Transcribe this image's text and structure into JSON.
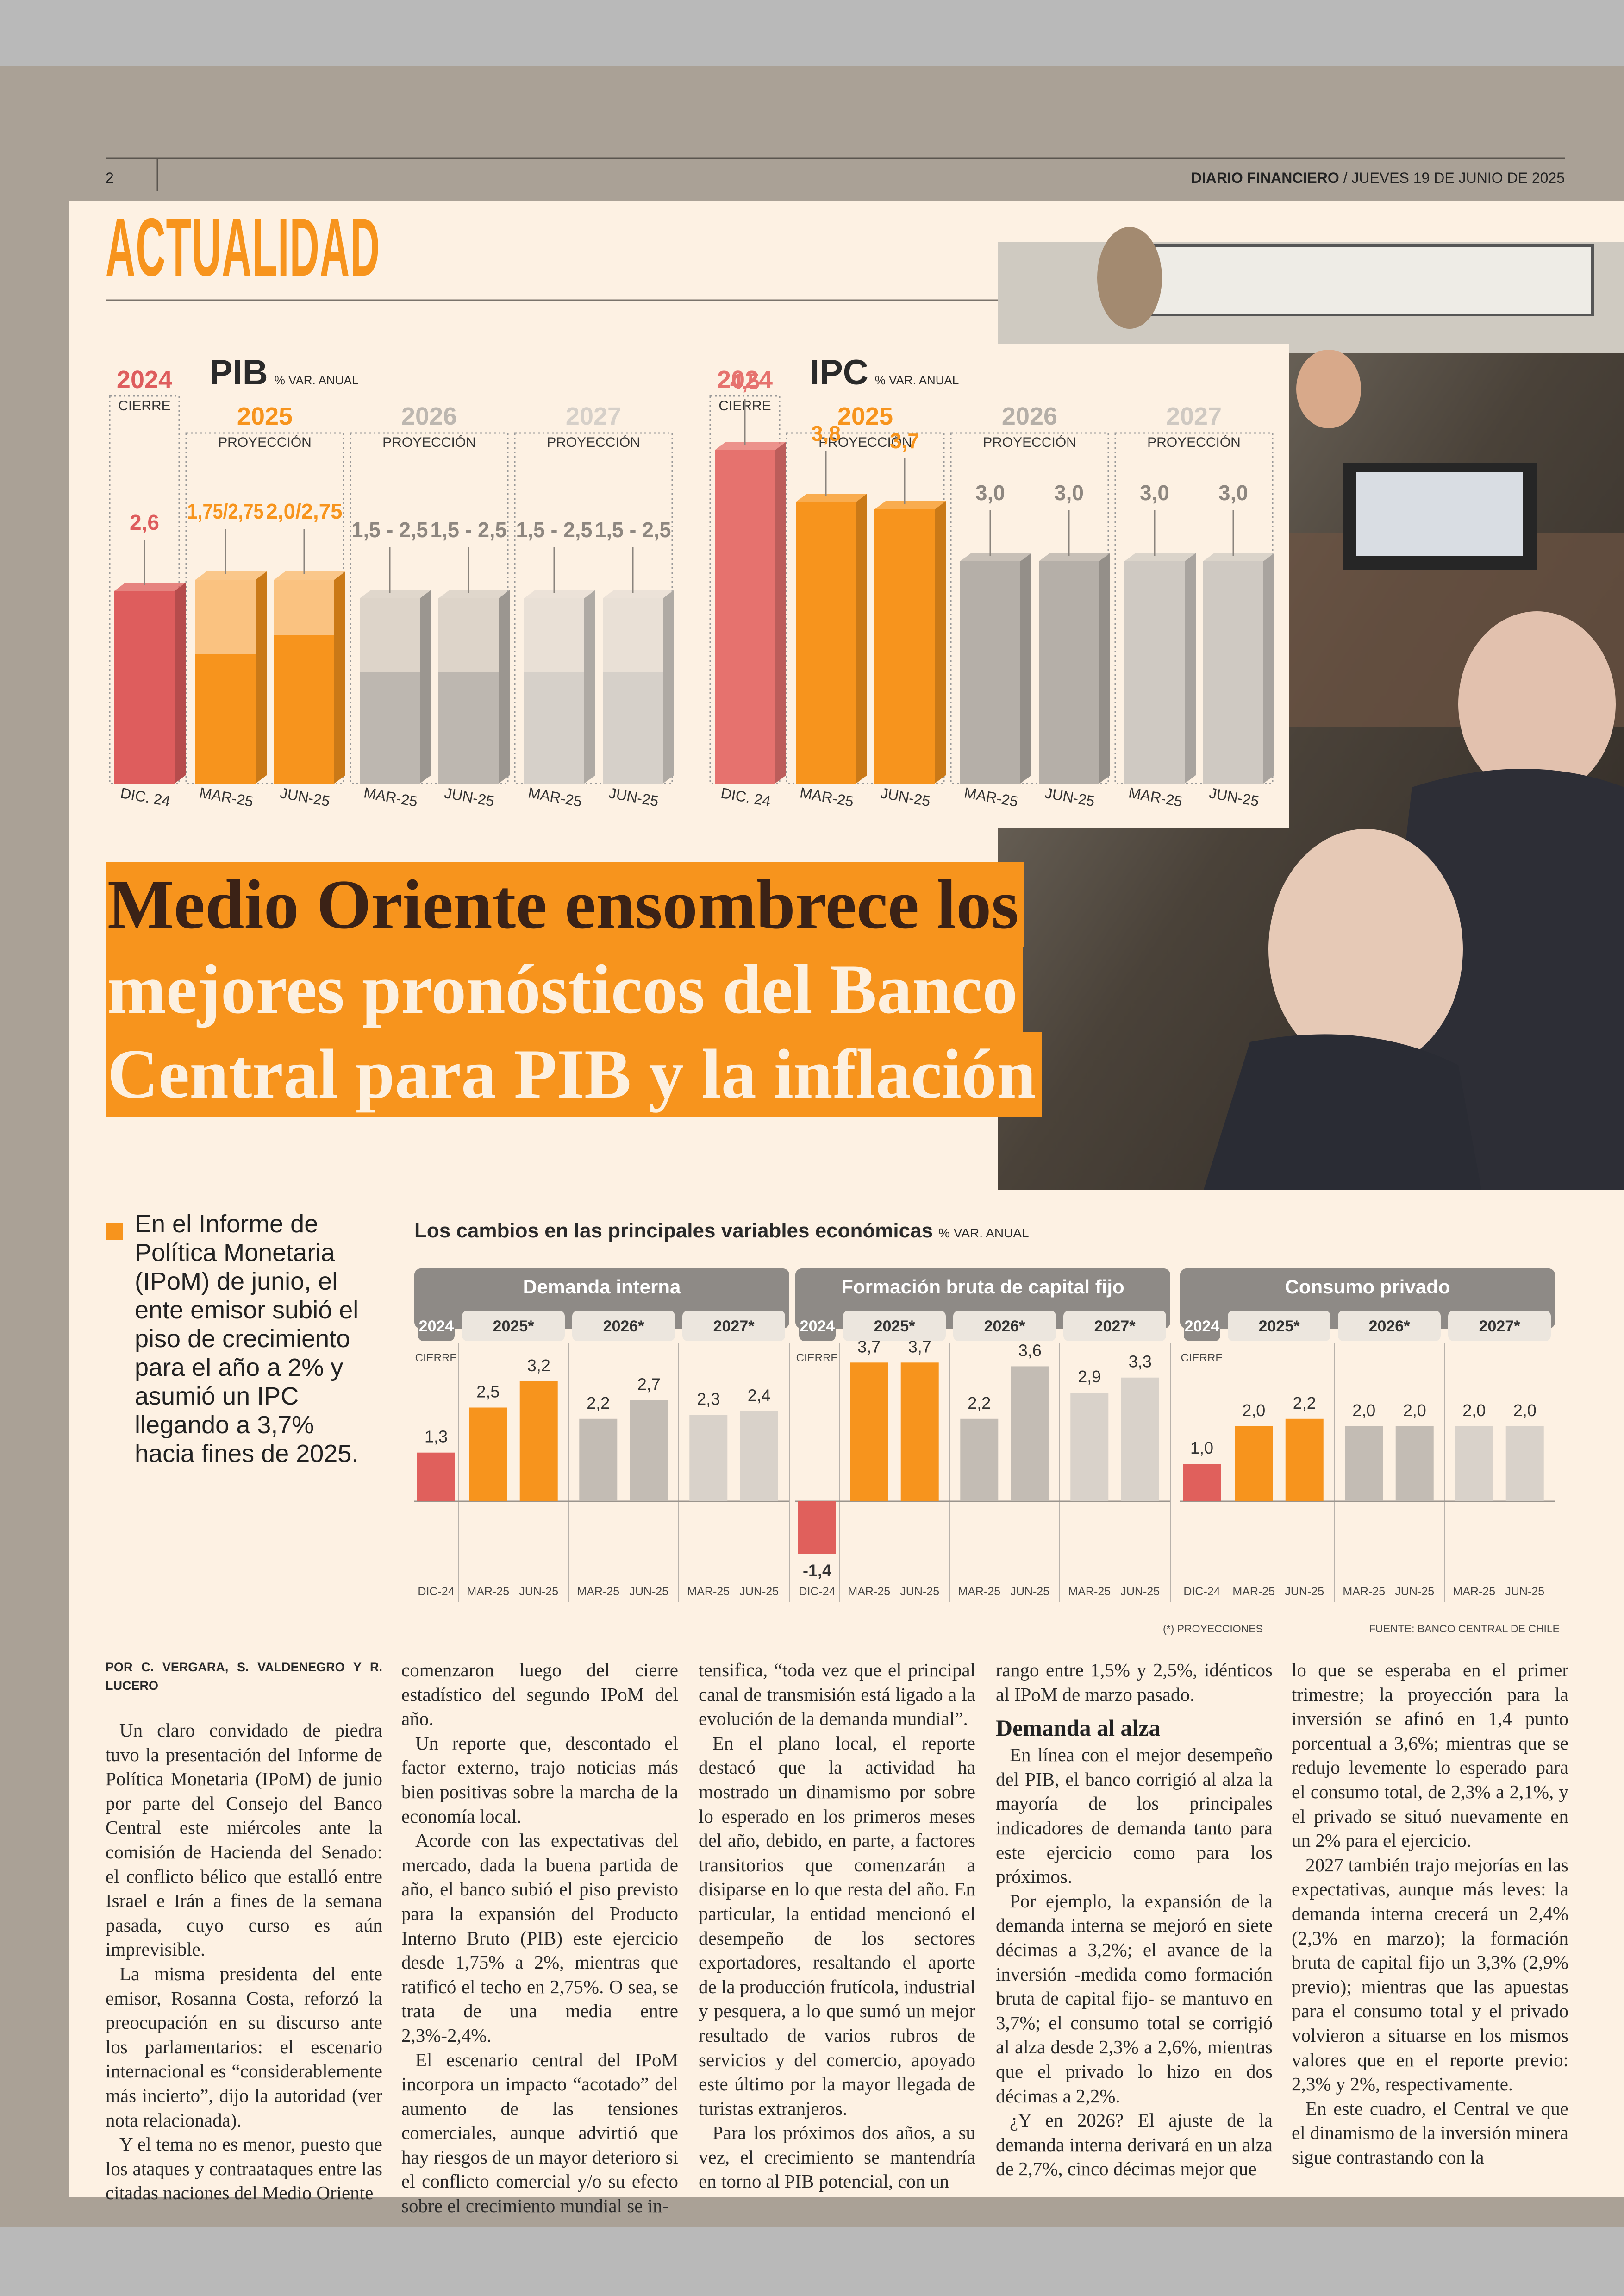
{
  "header": {
    "page_number": "2",
    "publication": "DIARIO FINANCIERO",
    "date": "/ JUEVES 19 DE JUNIO DE 2025"
  },
  "section": "ACTUALIDAD",
  "chart_data": [
    {
      "type": "bar",
      "title": "PIB",
      "unit": "% VAR. ANUAL",
      "groups": [
        "2024",
        "2025",
        "2026",
        "2027"
      ],
      "group_sublabels": [
        "CIERRE",
        "PROYECCIÓN",
        "PROYECCIÓN",
        "PROYECCIÓN"
      ],
      "categories": [
        "DIC. 24",
        "MAR-25",
        "JUN-25",
        "MAR-25",
        "JUN-25",
        "MAR-25",
        "JUN-25"
      ],
      "series": [
        {
          "values": [
            2.6,
            1.75,
            2.0,
            1.5,
            1.5,
            1.5,
            1.5
          ]
        },
        {
          "values": [
            null,
            2.75,
            2.75,
            2.5,
            2.5,
            2.5,
            2.5
          ]
        }
      ],
      "value_labels": [
        "2,6",
        "1,75/2,75",
        "2,0/2,75",
        "1,5 - 2,5",
        "1,5 - 2,5",
        "1,5 - 2,5",
        "1,5 - 2,5"
      ],
      "colors": [
        "#de5d5d",
        "#f7941d",
        "#bdb7b0",
        "#d6d0c9"
      ]
    },
    {
      "type": "bar",
      "title": "IPC",
      "unit": "% VAR. ANUAL",
      "groups": [
        "2024",
        "2025",
        "2026",
        "2027"
      ],
      "group_sublabels": [
        "CIERRE",
        "PROYECCIÓN",
        "PROYECCIÓN",
        "PROYECCIÓN"
      ],
      "categories": [
        "DIC. 24",
        "MAR-25",
        "JUN-25",
        "MAR-25",
        "JUN-25",
        "MAR-25",
        "JUN-25"
      ],
      "series": [
        {
          "values": [
            4.5,
            3.8,
            3.7,
            3.0,
            3.0,
            3.0,
            3.0
          ]
        }
      ],
      "value_labels": [
        "4,5",
        "3,8",
        "3,7",
        "3,0",
        "3,0",
        "3,0",
        "3,0"
      ],
      "colors": [
        "#e6726e",
        "#f7941d",
        "#b5afa8",
        "#cfc9c2"
      ]
    },
    {
      "type": "bar",
      "title": "Los cambios en las principales variables económicas",
      "unit": "% VAR. ANUAL",
      "groups": [
        "2024",
        "2025*",
        "2026*",
        "2027*"
      ],
      "first_group_sublabel": "CIERRE",
      "categories": [
        "DIC-24",
        "MAR-25",
        "JUN-25",
        "MAR-25",
        "JUN-25",
        "MAR-25",
        "JUN-25"
      ],
      "panels": [
        {
          "title": "Demanda interna",
          "values": [
            1.3,
            2.5,
            3.2,
            2.2,
            2.7,
            2.3,
            2.4
          ],
          "value_labels": [
            "1,3",
            "2,5",
            "3,2",
            "2,2",
            "2,7",
            "2,3",
            "2,4"
          ]
        },
        {
          "title": "Formación bruta de capital fijo",
          "values": [
            -1.4,
            3.7,
            3.7,
            2.2,
            3.6,
            2.9,
            3.3
          ],
          "value_labels": [
            "-1,4",
            "3,7",
            "3,7",
            "2,2",
            "3,6",
            "2,9",
            "3,3"
          ]
        },
        {
          "title": "Consumo privado",
          "values": [
            1.0,
            2.0,
            2.2,
            2.0,
            2.0,
            2.0,
            2.0
          ],
          "value_labels": [
            "1,0",
            "2,0",
            "2,2",
            "2,0",
            "2,0",
            "2,0",
            "2,0"
          ]
        }
      ],
      "colors": [
        "#e0605c",
        "#f7941d",
        "#c3bcb4",
        "#d9d2ca"
      ],
      "notes": [
        "(*) PROYECCIONES",
        "FUENTE: BANCO CENTRAL DE CHILE"
      ]
    }
  ],
  "headline": {
    "lines": [
      "Medio Oriente ensombrece los",
      "mejores pronósticos del Banco",
      "Central para PIB y la inflación"
    ]
  },
  "lead": "En el Informe de Política Monetaria (IPoM) de junio, el ente emisor subió el piso de crecimiento para el año a 2% y asumió un IPC llegando a 3,7% hacia fines de 2025.",
  "byline": "POR C. VERGARA, S. VALDENEGRO Y R. LUCERO",
  "body": {
    "columns": [
      [
        {
          "p": "Un claro convidado de piedra tuvo la presentación del Informe de Política Monetaria (IPoM) de junio por parte del Consejo del Banco Central este miércoles ante la comisión de Hacienda del Senado: el conflicto bélico que estalló entre Israel e Irán a fines de la semana pasada, cuyo curso es aún imprevisible."
        },
        {
          "p": "La misma presidenta del ente emisor, Rosanna Costa, reforzó la preocupación en su discurso ante los parlamentarios: el escenario internacional es “considerablemente más incierto”, dijo la autoridad (ver nota relacionada)."
        },
        {
          "p": "Y el tema no es menor, puesto que los ataques y contraataques entre las citadas naciones del Medio Oriente"
        }
      ],
      [
        {
          "p": "comenzaron luego del cierre estadístico del segundo IPoM del año."
        },
        {
          "p": "Un reporte que, descontado el factor externo, trajo noticias más bien positivas sobre la marcha de la economía local."
        },
        {
          "p": "Acorde con las expectativas del mercado, dada la buena partida de año, el banco subió el piso previsto para la expansión del Producto Interno Bruto (PIB) este ejercicio desde 1,75% a 2%, mientras que ratificó el techo en 2,75%. O sea, se trata de una media entre 2,3%-2,4%."
        },
        {
          "p": "El escenario central del IPoM incorpora un impacto “acotado” del aumento de las tensiones comerciales, aunque advirtió que hay riesgos de un mayor deterioro si el conflicto comercial y/o su efecto sobre el crecimiento mundial se in-"
        }
      ],
      [
        {
          "p": "tensifica, “toda vez que el principal canal de transmisión está ligado a la evolución de la demanda mundial”."
        },
        {
          "p": "En el plano local, el reporte destacó que la actividad ha mostrado un dinamismo por sobre lo esperado en los primeros meses del año, debido, en parte, a factores transitorios que comenzarán a disiparse en lo que resta del año. En particular, la entidad mencionó el desempeño de los sectores exportadores, resaltando el aporte de la producción frutícola, industrial y pesquera, a lo que sumó un mejor resultado de varios rubros de servicios y del comercio, apoyado este último por la mayor llegada de turistas extranjeros."
        },
        {
          "p": "Para los próximos dos años, a su vez, el crecimiento se mantendría en torno al PIB potencial, con un"
        }
      ],
      [
        {
          "p": "rango entre 1,5% y 2,5%, idénticos al IPoM de marzo pasado."
        },
        {
          "h": "Demanda al alza"
        },
        {
          "p": "En línea con el mejor desempeño del PIB, el banco corrigió al alza la mayoría de los principales indicadores de demanda tanto para este ejercicio como para los próximos."
        },
        {
          "p": "Por ejemplo, la expansión de la demanda interna se mejoró en siete décimas a 3,2%; el avance de la inversión -medida como formación bruta de capital fijo- se mantuvo en 3,7%; el consumo total se corrigió al alza desde 2,3% a 2,6%, mientras que el privado lo hizo en dos décimas a 2,2%."
        },
        {
          "p": "¿Y en 2026? El ajuste de la demanda interna derivará en un alza de 2,7%, cinco décimas mejor que"
        }
      ],
      [
        {
          "p": "lo que se esperaba en el primer trimestre; la proyección para la inversión se afinó en 1,4 punto porcentual a 3,6%; mientras que se redujo levemente lo esperado para el consumo total, de 2,3% a 2,1%, y el privado se situó nuevamente en un 2% para el ejercicio."
        },
        {
          "p": "2027 también trajo mejorías en las expectativas, aunque más leves: la demanda interna crecerá un 2,4% (2,3% en marzo); la formación bruta de capital fijo un 3,3% (2,9% previo); mientras que las apuestas para el consumo total y el privado volvieron a situarse en los mismos valores que en el reporte previo: 2,3% y 2%, respectivamente."
        },
        {
          "p": "En este cuadro, el Central ve que el dinamismo de la inversión minera sigue contrastando con la"
        }
      ]
    ]
  }
}
